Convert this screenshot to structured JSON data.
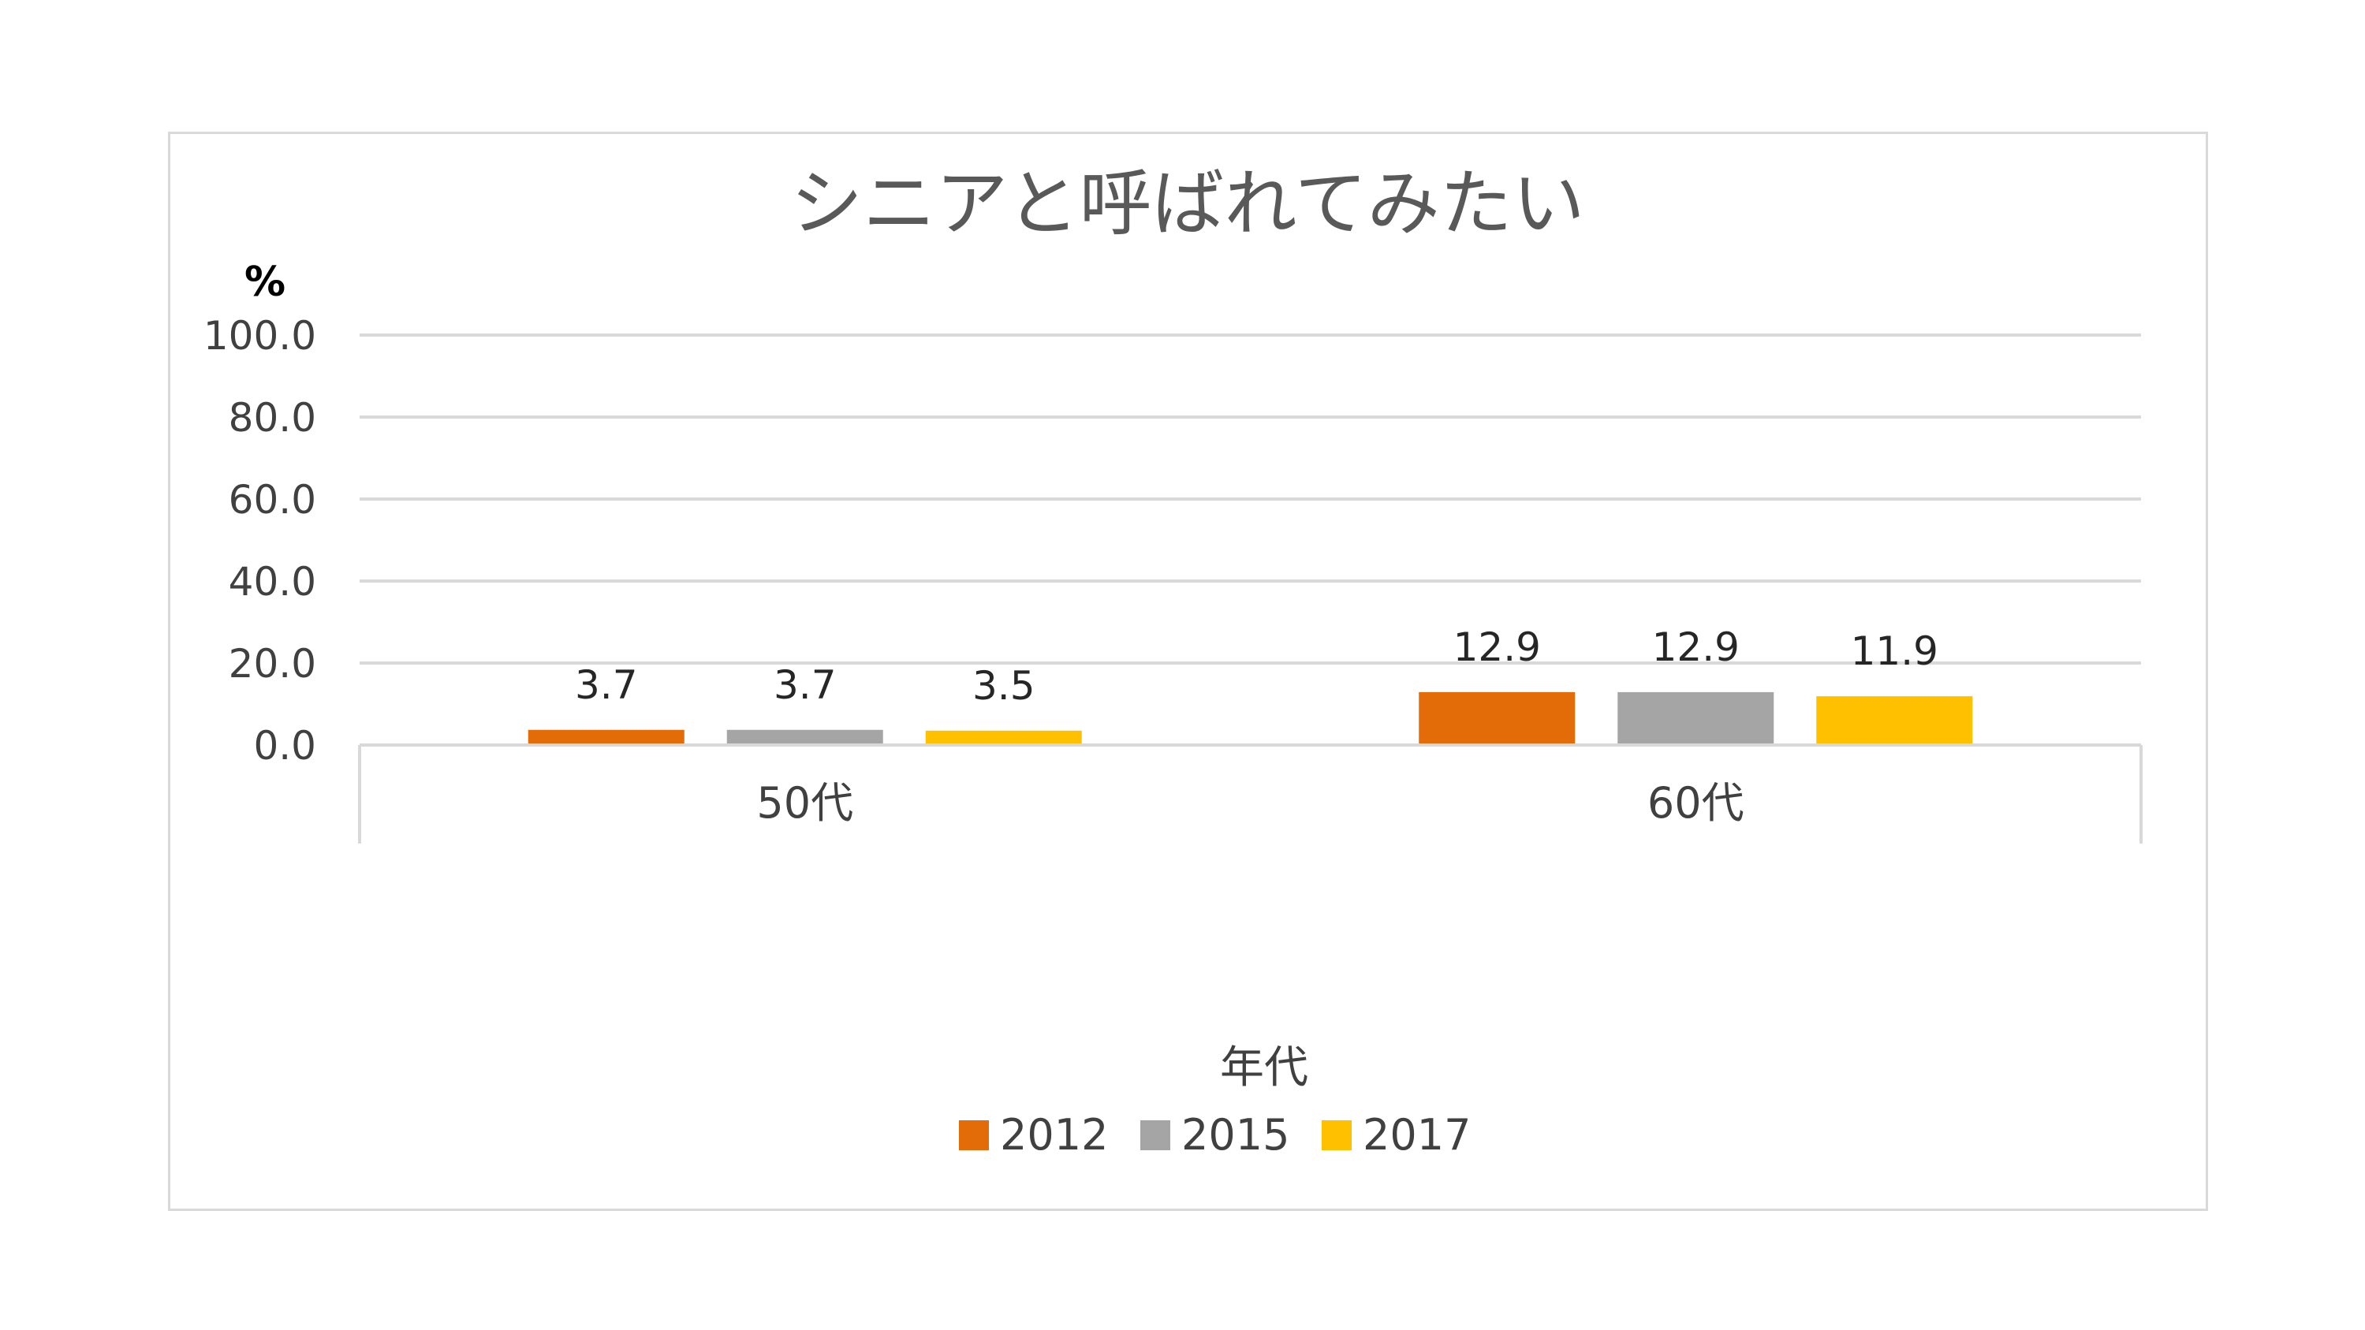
{
  "chart_data": {
    "type": "bar",
    "title": "シニアと呼ばれてみたい",
    "ylabel": "%",
    "xlabel": "年代",
    "categories": [
      "50代",
      "60代"
    ],
    "series": [
      {
        "name": "2012",
        "color": "#E36C09",
        "values": [
          3.7,
          12.9
        ]
      },
      {
        "name": "2015",
        "color": "#A5A5A5",
        "values": [
          3.7,
          12.9
        ]
      },
      {
        "name": "2017",
        "color": "#FFC000",
        "values": [
          3.5,
          11.9
        ]
      }
    ],
    "ylim": [
      0,
      100
    ],
    "yticks": [
      "0.0",
      "20.0",
      "40.0",
      "60.0",
      "80.0",
      "100.0"
    ],
    "ytick_values": [
      0,
      20,
      40,
      60,
      80,
      100
    ],
    "grid": true,
    "legend_position": "bottom",
    "gridline_color": "#D9D9D9"
  }
}
